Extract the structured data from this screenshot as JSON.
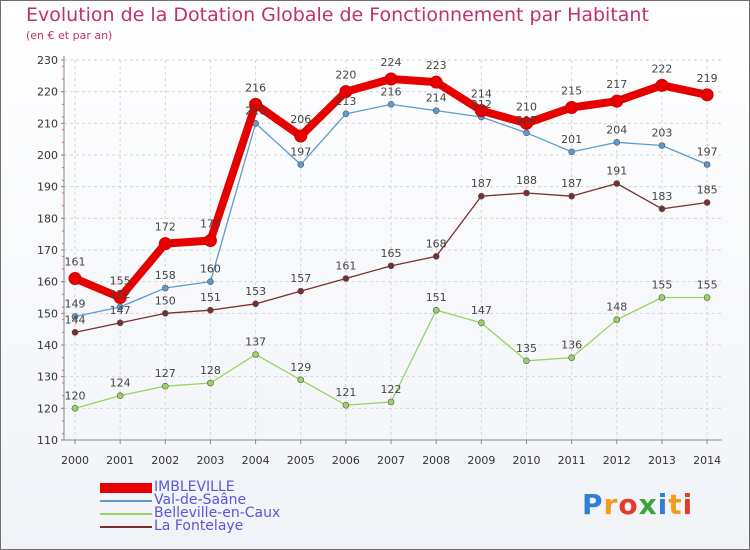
{
  "title": "Evolution de la Dotation Globale de Fonctionnement par Habitant",
  "subtitle": "(en € et par an)",
  "brand": {
    "letters": [
      {
        "ch": "P",
        "color": "#2f7fd6"
      },
      {
        "ch": "r",
        "color": "#f29b1c"
      },
      {
        "ch": "o",
        "color": "#e53b2c"
      },
      {
        "ch": "x",
        "color": "#3aa43b"
      },
      {
        "ch": "i",
        "color": "#2f7fd6"
      },
      {
        "ch": "t",
        "color": "#f29b1c"
      },
      {
        "ch": "i",
        "color": "#e53b2c"
      }
    ]
  },
  "chart_data": {
    "type": "line",
    "title": "Evolution de la Dotation Globale de Fonctionnement par Habitant",
    "subtitle": "(en € et par an)",
    "x": [
      "2000",
      "2001",
      "2002",
      "2003",
      "2004",
      "2005",
      "2006",
      "2007",
      "2008",
      "2009",
      "2010",
      "2011",
      "2012",
      "2013",
      "2014"
    ],
    "ylim": [
      110,
      230
    ],
    "yticks": [
      110,
      120,
      130,
      140,
      150,
      160,
      170,
      180,
      190,
      200,
      210,
      220,
      230
    ],
    "grid": true,
    "legend": "bottom-left",
    "series": [
      {
        "name": "IMBLEVILLE",
        "color": "#e60000",
        "values": [
          161,
          155,
          172,
          173,
          216,
          206,
          220,
          224,
          223,
          214,
          210,
          215,
          217,
          222,
          219
        ]
      },
      {
        "name": "Val-de-Saâne",
        "color": "#5b9bd1",
        "values": [
          149,
          152,
          158,
          160,
          210,
          197,
          213,
          216,
          214,
          212,
          207,
          201,
          204,
          203,
          197
        ]
      },
      {
        "name": "Belleville-en-Caux",
        "color": "#99d461",
        "values": [
          120,
          124,
          127,
          128,
          137,
          129,
          121,
          122,
          151,
          147,
          135,
          136,
          148,
          155,
          155
        ]
      },
      {
        "name": "La Fontelaye",
        "color": "#7a2e2e",
        "values": [
          144,
          147,
          150,
          151,
          153,
          157,
          161,
          165,
          168,
          187,
          188,
          187,
          191,
          183,
          185
        ]
      }
    ]
  }
}
